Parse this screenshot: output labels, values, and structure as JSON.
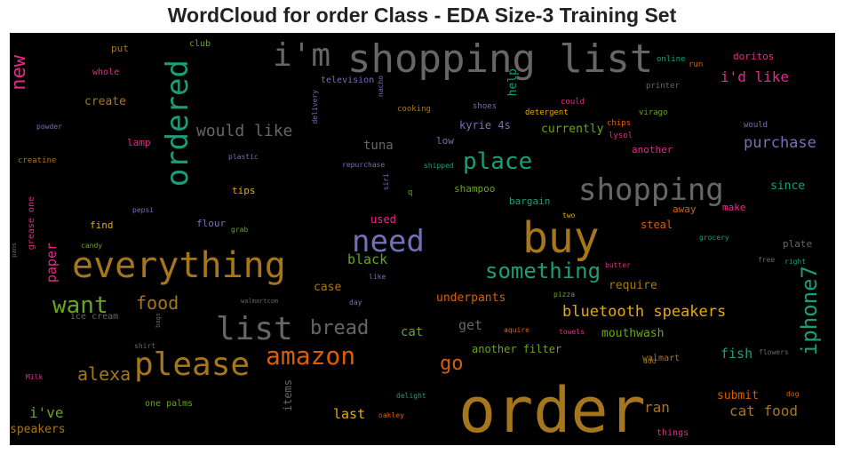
{
  "title": "WordCloud for order Class - EDA Size-3 Training Set",
  "words": [
    {
      "t": "order",
      "c": "#a6761d"
    },
    {
      "t": "shopping list",
      "c": "#666666"
    },
    {
      "t": "everything",
      "c": "#a6761d"
    },
    {
      "t": "buy",
      "c": "#a6761d"
    },
    {
      "t": "i'm",
      "c": "#666666"
    },
    {
      "t": "please",
      "c": "#a6761d"
    },
    {
      "t": "list",
      "c": "#666666"
    },
    {
      "t": "shopping",
      "c": "#666666"
    },
    {
      "t": "need",
      "c": "#7570b3"
    },
    {
      "t": "ordered",
      "c": "#1b9e77"
    },
    {
      "t": "amazon",
      "c": "#d95f02"
    },
    {
      "t": "place",
      "c": "#1b9e77"
    },
    {
      "t": "something",
      "c": "#1b9e77"
    },
    {
      "t": "want",
      "c": "#66a61e"
    },
    {
      "t": "iphone7",
      "c": "#1b9e77"
    },
    {
      "t": "bread",
      "c": "#666666"
    },
    {
      "t": "food",
      "c": "#a6761d"
    },
    {
      "t": "alexa",
      "c": "#a6761d"
    },
    {
      "t": "go",
      "c": "#d95f02"
    },
    {
      "t": "new",
      "c": "#e7298a"
    },
    {
      "t": "would like",
      "c": "#666666"
    },
    {
      "t": "bluetooth speakers",
      "c": "#e6ab02"
    },
    {
      "t": "purchase",
      "c": "#7570b3"
    },
    {
      "t": "i'd like",
      "c": "#e7298a"
    },
    {
      "t": "cat food",
      "c": "#a6761d"
    },
    {
      "t": "i've",
      "c": "#66a61e"
    },
    {
      "t": "ran",
      "c": "#a6761d"
    },
    {
      "t": "last",
      "c": "#e6ab02"
    },
    {
      "t": "black",
      "c": "#66a61e"
    },
    {
      "t": "paper",
      "c": "#e7298a"
    },
    {
      "t": "fish",
      "c": "#1b9e77"
    },
    {
      "t": "get",
      "c": "#666666"
    },
    {
      "t": "cat",
      "c": "#66a61e"
    },
    {
      "t": "underpants",
      "c": "#d95f02"
    },
    {
      "t": "require",
      "c": "#a6761d"
    },
    {
      "t": "mouthwash",
      "c": "#66a61e"
    },
    {
      "t": "create",
      "c": "#a6761d"
    },
    {
      "t": "tuna",
      "c": "#666666"
    },
    {
      "t": "case",
      "c": "#a6761d"
    },
    {
      "t": "submit",
      "c": "#d95f02"
    },
    {
      "t": "since",
      "c": "#1b9e77"
    },
    {
      "t": "speakers",
      "c": "#a6761d"
    },
    {
      "t": "currently",
      "c": "#66a61e"
    },
    {
      "t": "help",
      "c": "#1b9e77"
    },
    {
      "t": "kyrie 4s",
      "c": "#7570b3"
    },
    {
      "t": "another filter",
      "c": "#66a61e"
    },
    {
      "t": "items",
      "c": "#666666"
    },
    {
      "t": "steal",
      "c": "#d95f02"
    },
    {
      "t": "bargain",
      "c": "#1b9e77"
    },
    {
      "t": "used",
      "c": "#e7298a"
    },
    {
      "t": "find",
      "c": "#e6ab02"
    },
    {
      "t": "flour",
      "c": "#7570b3"
    },
    {
      "t": "shampoo",
      "c": "#66a61e"
    },
    {
      "t": "lamp",
      "c": "#e7298a"
    },
    {
      "t": "tips",
      "c": "#e6ab02"
    },
    {
      "t": "low",
      "c": "#7570b3"
    },
    {
      "t": "another",
      "c": "#e7298a"
    },
    {
      "t": "plate",
      "c": "#666666"
    },
    {
      "t": "away",
      "c": "#d95f02"
    },
    {
      "t": "make",
      "c": "#e7298a"
    },
    {
      "t": "walmart",
      "c": "#a6761d"
    },
    {
      "t": "things",
      "c": "#e7298a"
    },
    {
      "t": "doritos",
      "c": "#e7298a"
    },
    {
      "t": "whole",
      "c": "#e7298a"
    },
    {
      "t": "put",
      "c": "#a6761d"
    },
    {
      "t": "club",
      "c": "#66a61e"
    },
    {
      "t": "one palms",
      "c": "#66a61e"
    },
    {
      "t": "ice cream",
      "c": "#666666"
    },
    {
      "t": "grease one",
      "c": "#e7298a"
    },
    {
      "t": "television",
      "c": "#7570b3"
    },
    {
      "t": "cooking",
      "c": "#a6761d"
    },
    {
      "t": "shoes",
      "c": "#7570b3"
    },
    {
      "t": "detergent",
      "c": "#e6ab02"
    },
    {
      "t": "could",
      "c": "#e7298a"
    },
    {
      "t": "online",
      "c": "#1b9e77"
    },
    {
      "t": "run",
      "c": "#d95f02"
    },
    {
      "t": "printer",
      "c": "#666666"
    },
    {
      "t": "chips",
      "c": "#d95f02"
    },
    {
      "t": "lysol",
      "c": "#e7298a"
    },
    {
      "t": "virago",
      "c": "#66a61e"
    },
    {
      "t": "would",
      "c": "#7570b3"
    },
    {
      "t": "powder",
      "c": "#7570b3"
    },
    {
      "t": "creatine",
      "c": "#a6761d"
    },
    {
      "t": "plastic",
      "c": "#7570b3"
    },
    {
      "t": "repurchase",
      "c": "#7570b3"
    },
    {
      "t": "shipped",
      "c": "#1b9e77"
    },
    {
      "t": "delivery",
      "c": "#7570b3"
    },
    {
      "t": "nacho",
      "c": "#7570b3"
    },
    {
      "t": "siri",
      "c": "#7570b3"
    },
    {
      "t": "q",
      "c": "#66a61e"
    },
    {
      "t": "pepsi",
      "c": "#7570b3"
    },
    {
      "t": "grab",
      "c": "#66a61e"
    },
    {
      "t": "two",
      "c": "#e6ab02"
    },
    {
      "t": "candy",
      "c": "#66a61e"
    },
    {
      "t": "pans",
      "c": "#666666"
    },
    {
      "t": "grocery",
      "c": "#1b9e77"
    },
    {
      "t": "free",
      "c": "#666666"
    },
    {
      "t": "right",
      "c": "#1b9e77"
    },
    {
      "t": "butter",
      "c": "#e7298a"
    },
    {
      "t": "walmartcom",
      "c": "#666666"
    },
    {
      "t": "like",
      "c": "#7570b3"
    },
    {
      "t": "day",
      "c": "#7570b3"
    },
    {
      "t": "pizza",
      "c": "#66a61e"
    },
    {
      "t": "bags",
      "c": "#666666"
    },
    {
      "t": "aquire",
      "c": "#d95f02"
    },
    {
      "t": "towels",
      "c": "#e7298a"
    },
    {
      "t": "shirt",
      "c": "#666666"
    },
    {
      "t": "add",
      "c": "#a6761d"
    },
    {
      "t": "flowers",
      "c": "#666666"
    },
    {
      "t": "Milk",
      "c": "#e7298a"
    },
    {
      "t": "delight",
      "c": "#1b9e77"
    },
    {
      "t": "dog",
      "c": "#d95f02"
    },
    {
      "t": "oakley",
      "c": "#d95f02"
    }
  ]
}
